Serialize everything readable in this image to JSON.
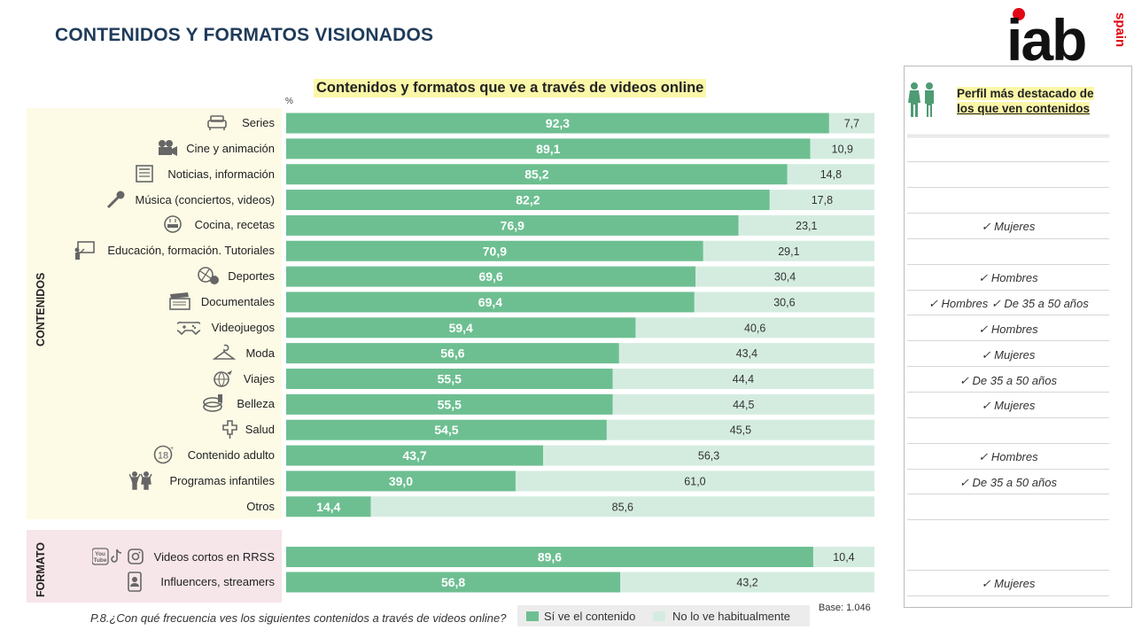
{
  "page": {
    "title": "CONTENIDOS Y FORMATOS VISIONADOS",
    "logo_text": "iab",
    "logo_subtext": "spain"
  },
  "chart_data": {
    "type": "bar",
    "orientation": "horizontal",
    "stacked": true,
    "title": "Contenidos  y formatos que ve a través de videos online",
    "unit_label": "%",
    "xlim": [
      0,
      100
    ],
    "groups": [
      {
        "name": "CONTENIDOS",
        "categories": [
          "Series",
          "Cine y animación",
          "Noticias, información",
          "Música (conciertos, videos)",
          "Cocina, recetas",
          "Educación, formación. Tutoriales",
          "Deportes",
          "Documentales",
          "Videojuegos",
          "Moda",
          "Viajes",
          "Belleza",
          "Salud",
          "Contenido adulto",
          "Programas infantiles",
          "Otros"
        ]
      },
      {
        "name": "FORMATO",
        "categories": [
          "Videos cortos en RRSS",
          "Influencers, streamers"
        ]
      }
    ],
    "categories": [
      "Series",
      "Cine y animación",
      "Noticias, información",
      "Música (conciertos, videos)",
      "Cocina, recetas",
      "Educación, formación. Tutoriales",
      "Deportes",
      "Documentales",
      "Videojuegos",
      "Moda",
      "Viajes",
      "Belleza",
      "Salud",
      "Contenido adulto",
      "Programas infantiles",
      "Otros",
      "Videos cortos en RRSS",
      "Influencers, streamers"
    ],
    "series": [
      {
        "name": "Sí ve el contenido",
        "color": "#6dbf91",
        "values": [
          92.3,
          89.1,
          85.2,
          82.2,
          76.9,
          70.9,
          69.6,
          69.4,
          59.4,
          56.6,
          55.5,
          55.5,
          54.5,
          43.7,
          39.0,
          14.4,
          89.6,
          56.8
        ],
        "labels": [
          "92,3",
          "89,1",
          "85,2",
          "82,2",
          "76,9",
          "70,9",
          "69,6",
          "69,4",
          "59,4",
          "56,6",
          "55,5",
          "55,5",
          "54,5",
          "43,7",
          "39,0",
          "14,4",
          "89,6",
          "56,8"
        ]
      },
      {
        "name": "No lo ve habitualmente",
        "color": "#d4ece0",
        "values": [
          7.7,
          10.9,
          14.8,
          17.8,
          23.1,
          29.1,
          30.4,
          30.6,
          40.6,
          43.4,
          44.4,
          44.5,
          45.5,
          56.3,
          61.0,
          85.6,
          10.4,
          43.2
        ],
        "labels": [
          "7,7",
          "10,9",
          "14,8",
          "17,8",
          "23,1",
          "29,1",
          "30,4",
          "30,6",
          "40,6",
          "43,4",
          "44,4",
          "44,5",
          "45,5",
          "56,3",
          "61,0",
          "85,6",
          "10,4",
          "43,2"
        ]
      }
    ]
  },
  "profile": {
    "heading_part1": "Perfil más destacado de ",
    "heading_part2": "los que ven contenidos",
    "check": "✓",
    "rows": [
      [],
      [],
      [],
      [],
      [
        "Mujeres"
      ],
      [],
      [
        "Hombres"
      ],
      [
        "Hombres",
        "De 35 a 50 años"
      ],
      [
        "Hombres"
      ],
      [
        "Mujeres"
      ],
      [
        "De 35 a 50 años"
      ],
      [
        "Mujeres"
      ],
      [],
      [
        "Hombres"
      ],
      [
        "De 35 a 50 años"
      ],
      [],
      [],
      [
        "Mujeres"
      ]
    ]
  },
  "legend": {
    "yes": "Sí ve el contenido",
    "no": "No lo ve habitualmente"
  },
  "base_text": "Base: 1.046",
  "question": "P.8.¿Con qué frecuencia ves los siguientes contenidos a través de videos online?",
  "colors": {
    "title": "#1f3b5a",
    "yes": "#6dbf91",
    "no": "#d4ece0",
    "highlight": "#fbf7a8",
    "logo_red": "#e30613"
  },
  "icons": [
    "sofa-icon",
    "film-camera-icon",
    "newspaper-icon",
    "microphone-icon",
    "cooking-pot-icon",
    "teacher-board-icon",
    "sports-balls-icon",
    "clapperboard-icon",
    "gamepad-icon",
    "hanger-icon",
    "globe-plane-icon",
    "cosmetics-icon",
    "medical-cross-icon",
    "adult-18-icon",
    "children-icon",
    "none",
    "social-media-icon",
    "influencer-phone-icon"
  ]
}
